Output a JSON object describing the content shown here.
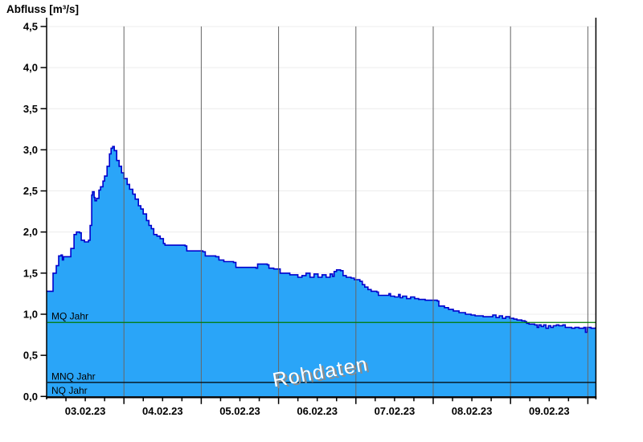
{
  "title": "Abfluss [m³/s]",
  "watermark": "Rohdaten",
  "colors": {
    "area_fill": "#2AA5F8",
    "area_stroke": "#0000CD",
    "mq_line": "#007A00",
    "mnq_line": "#000000",
    "axis": "#000000",
    "v_grid": "#666666",
    "h_grid": "#ECECEC",
    "watermark_fill": "#FFFFFF",
    "watermark_shadow": "#8C8C8C"
  },
  "chart_data": {
    "type": "area",
    "title": "Abfluss [m³/s]",
    "ylabel": "Abfluss [m³/s]",
    "ylim": [
      0,
      4.5
    ],
    "ytick_step": 0.5,
    "y_tick_labels": [
      "4,5",
      "4,0",
      "3,5",
      "3,0",
      "2,5",
      "2,0",
      "1,5",
      "1,0",
      "0,5",
      "0,0"
    ],
    "x_axis": {
      "unit": "hours since 03.02.2023 00:00",
      "range_hours": [
        0,
        170.5
      ],
      "day_tick_labels": [
        "03.02.23",
        "04.02.23",
        "05.02.23",
        "06.02.23",
        "07.02.23",
        "08.02.23",
        "09.02.23"
      ],
      "label_center_hours": [
        12,
        36,
        60,
        84,
        108,
        132,
        156
      ],
      "major_tick_hours": 24,
      "minor_tick_hours": 6,
      "grid": "vertical lines at each midnight"
    },
    "reference_lines": [
      {
        "label": "MQ Jahr",
        "value": 0.9,
        "color": "#007A00"
      },
      {
        "label": "MNQ Jahr",
        "value": 0.17,
        "color": "#000000"
      },
      {
        "label": "NQ Jahr",
        "value": null,
        "color": "#000000"
      }
    ],
    "series": [
      {
        "name": "Abfluss (Rohdaten)",
        "unit": "m³/s",
        "render": "step-after area",
        "points": [
          [
            0,
            1.28
          ],
          [
            1.75,
            1.28
          ],
          [
            2,
            1.5
          ],
          [
            3,
            1.59
          ],
          [
            3.75,
            1.71
          ],
          [
            4.5,
            1.72
          ],
          [
            4.9,
            1.66
          ],
          [
            5.25,
            1.7
          ],
          [
            7,
            1.7
          ],
          [
            7.5,
            1.8
          ],
          [
            8.5,
            1.97
          ],
          [
            9.25,
            2.0
          ],
          [
            10.25,
            1.99
          ],
          [
            10.75,
            1.9
          ],
          [
            11.75,
            1.88
          ],
          [
            13,
            1.9
          ],
          [
            13.5,
            2.08
          ],
          [
            14,
            2.45
          ],
          [
            14.25,
            2.49
          ],
          [
            14.75,
            2.42
          ],
          [
            15,
            2.38
          ],
          [
            15.5,
            2.41
          ],
          [
            16.25,
            2.51
          ],
          [
            16.75,
            2.55
          ],
          [
            17.5,
            2.62
          ],
          [
            18,
            2.68
          ],
          [
            18.75,
            2.8
          ],
          [
            19.5,
            2.95
          ],
          [
            20,
            3.02
          ],
          [
            20.5,
            3.04
          ],
          [
            21,
            2.99
          ],
          [
            21.75,
            2.87
          ],
          [
            22.5,
            2.8
          ],
          [
            23.25,
            2.72
          ],
          [
            24,
            2.65
          ],
          [
            25,
            2.58
          ],
          [
            25.75,
            2.52
          ],
          [
            26.75,
            2.46
          ],
          [
            27.5,
            2.4
          ],
          [
            28.5,
            2.32
          ],
          [
            29.25,
            2.28
          ],
          [
            30,
            2.22
          ],
          [
            31,
            2.14
          ],
          [
            31.75,
            2.08
          ],
          [
            32.5,
            2.04
          ],
          [
            33.25,
            1.97
          ],
          [
            34.25,
            1.95
          ],
          [
            35.25,
            1.92
          ],
          [
            36.25,
            1.86
          ],
          [
            36.75,
            1.84
          ],
          [
            43,
            1.83
          ],
          [
            43.5,
            1.77
          ],
          [
            48.5,
            1.76
          ],
          [
            49.25,
            1.71
          ],
          [
            52.5,
            1.7
          ],
          [
            53.5,
            1.66
          ],
          [
            55,
            1.64
          ],
          [
            58,
            1.63
          ],
          [
            58.75,
            1.57
          ],
          [
            65,
            1.56
          ],
          [
            65.5,
            1.61
          ],
          [
            68.5,
            1.6
          ],
          [
            69,
            1.56
          ],
          [
            70.5,
            1.55
          ],
          [
            72.5,
            1.5
          ],
          [
            75.5,
            1.48
          ],
          [
            78,
            1.45
          ],
          [
            79.25,
            1.47
          ],
          [
            80.5,
            1.5
          ],
          [
            81.75,
            1.45
          ],
          [
            83,
            1.49
          ],
          [
            84.25,
            1.45
          ],
          [
            85.5,
            1.48
          ],
          [
            86.75,
            1.45
          ],
          [
            88,
            1.49
          ],
          [
            88.75,
            1.46
          ],
          [
            89.25,
            1.52
          ],
          [
            90,
            1.54
          ],
          [
            91.25,
            1.53
          ],
          [
            92,
            1.47
          ],
          [
            93,
            1.45
          ],
          [
            94.5,
            1.44
          ],
          [
            95.5,
            1.42
          ],
          [
            97.25,
            1.4
          ],
          [
            98,
            1.36
          ],
          [
            98.75,
            1.33
          ],
          [
            99.75,
            1.3
          ],
          [
            100.75,
            1.28
          ],
          [
            102.5,
            1.27
          ],
          [
            103,
            1.23
          ],
          [
            105.5,
            1.23
          ],
          [
            106.25,
            1.25
          ],
          [
            106.75,
            1.22
          ],
          [
            108,
            1.21
          ],
          [
            109.25,
            1.24
          ],
          [
            109.75,
            1.2
          ],
          [
            110.5,
            1.22
          ],
          [
            111.75,
            1.19
          ],
          [
            113,
            1.21
          ],
          [
            114.25,
            1.19
          ],
          [
            115.5,
            1.18
          ],
          [
            117.5,
            1.17
          ],
          [
            119.25,
            1.17
          ],
          [
            121.25,
            1.16
          ],
          [
            121.75,
            1.1
          ],
          [
            123.5,
            1.08
          ],
          [
            124.75,
            1.06
          ],
          [
            126.25,
            1.04
          ],
          [
            128,
            1.02
          ],
          [
            130,
            1.0
          ],
          [
            131.75,
            0.99
          ],
          [
            133,
            0.98
          ],
          [
            135.5,
            0.97
          ],
          [
            138,
            0.97
          ],
          [
            138.5,
            0.99
          ],
          [
            139.5,
            0.96
          ],
          [
            140.5,
            0.98
          ],
          [
            141.5,
            0.95
          ],
          [
            142.5,
            0.97
          ],
          [
            143.75,
            0.95
          ],
          [
            145,
            0.94
          ],
          [
            146,
            0.93
          ],
          [
            147.5,
            0.92
          ],
          [
            148.5,
            0.91
          ],
          [
            149,
            0.89
          ],
          [
            149.75,
            0.88
          ],
          [
            151.5,
            0.87
          ],
          [
            152.25,
            0.84
          ],
          [
            152.75,
            0.87
          ],
          [
            153.5,
            0.85
          ],
          [
            154.25,
            0.87
          ],
          [
            155,
            0.83
          ],
          [
            155.75,
            0.86
          ],
          [
            156.5,
            0.84
          ],
          [
            157.25,
            0.86
          ],
          [
            158.25,
            0.87
          ],
          [
            159,
            0.86
          ],
          [
            160.25,
            0.87
          ],
          [
            161,
            0.84
          ],
          [
            163,
            0.83
          ],
          [
            164,
            0.84
          ],
          [
            165.25,
            0.83
          ],
          [
            166.75,
            0.84
          ],
          [
            167.25,
            0.78
          ],
          [
            167.75,
            0.84
          ],
          [
            169,
            0.83
          ],
          [
            170.4,
            0.84
          ]
        ]
      }
    ]
  }
}
